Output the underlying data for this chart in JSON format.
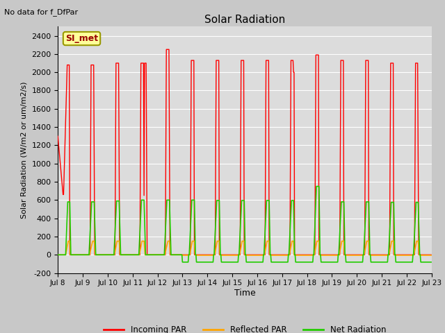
{
  "title": "Solar Radiation",
  "subtitle": "No data for f_DfPar",
  "ylabel": "Solar Radiation (W/m2 or um/m2/s)",
  "xlabel": "Time",
  "xlim_days": [
    8,
    23
  ],
  "ylim": [
    -200,
    2500
  ],
  "yticks": [
    -200,
    0,
    200,
    400,
    600,
    800,
    1000,
    1200,
    1400,
    1600,
    1800,
    2000,
    2200,
    2400
  ],
  "xtick_days": [
    8,
    9,
    10,
    11,
    12,
    13,
    14,
    15,
    16,
    17,
    18,
    19,
    20,
    21,
    22,
    23
  ],
  "xtick_labels": [
    "Jul 8",
    "Jul 9",
    "Jul 10",
    "Jul 11",
    "Jul 12",
    "Jul 13",
    "Jul 14",
    "Jul 15",
    "Jul 16",
    "Jul 17",
    "Jul 18",
    "Jul 19",
    "Jul 20",
    "Jul 21",
    "Jul 22",
    "Jul 23"
  ],
  "legend_entries": [
    "Incoming PAR",
    "Reflected PAR",
    "Net Radiation"
  ],
  "legend_colors": [
    "#ff0000",
    "#ffa500",
    "#22cc00"
  ],
  "line_colors": {
    "incoming": "#ff0000",
    "reflected": "#ffa500",
    "net": "#22cc00"
  },
  "bg_color": "#dcdcdc",
  "fig_bg": "#c8c8c8",
  "grid_color": "#ffffff",
  "annotation_box_color": "#ffff99",
  "annotation_box_edge": "#999900",
  "annotation_text": "SI_met",
  "annotation_text_color": "#990000"
}
